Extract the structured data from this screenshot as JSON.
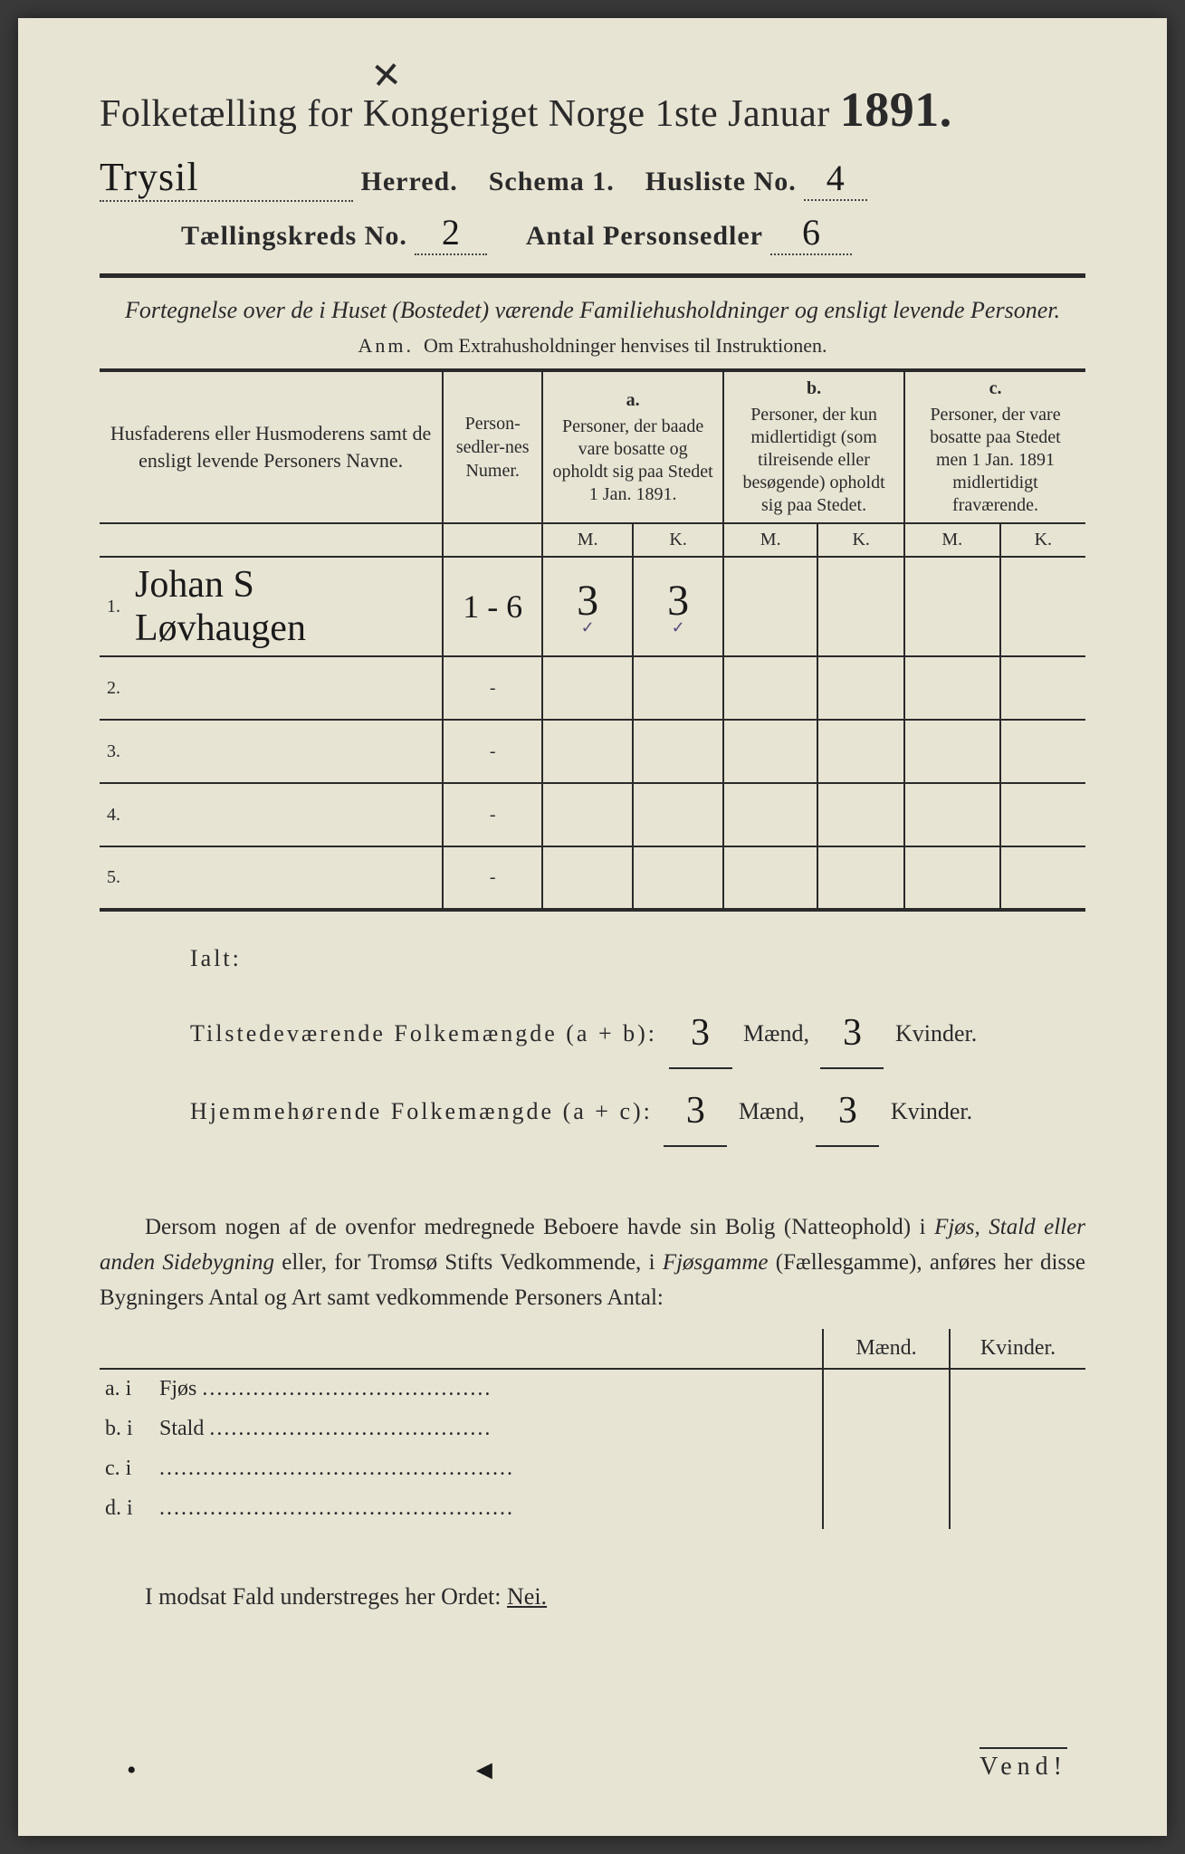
{
  "colors": {
    "paper": "#e8e4d4",
    "ink": "#2a2a2a",
    "handwriting": "#1a1a1a",
    "tick": "#5a4a7a",
    "background": "#3a3a3a"
  },
  "header": {
    "cross_mark": "✕",
    "title_prefix": "Folketælling for Kongeriget Norge 1ste Januar",
    "year": "1891.",
    "herred_value": "Trysil",
    "herred_label": "Herred.",
    "schema_label": "Schema 1.",
    "husliste_label": "Husliste No.",
    "husliste_value": "4",
    "kreds_label": "Tællingskreds No.",
    "kreds_value": "2",
    "personsedler_label": "Antal Personsedler",
    "personsedler_value": "6"
  },
  "intro": {
    "line": "Fortegnelse over de i Huset (Bostedet) værende Familiehusholdninger og ensligt levende Personer.",
    "anm_label": "Anm.",
    "anm_text": "Om Extrahusholdninger henvises til Instruktionen."
  },
  "table": {
    "col_name": "Husfaderens eller Husmoderens samt de ensligt levende Personers Navne.",
    "col_numer": "Person-sedler-nes Numer.",
    "col_a_label": "a.",
    "col_a_text": "Personer, der baade vare bosatte og opholdt sig paa Stedet 1 Jan. 1891.",
    "col_b_label": "b.",
    "col_b_text": "Personer, der kun midlertidigt (som tilreisende eller besøgende) opholdt sig paa Stedet.",
    "col_c_label": "c.",
    "col_c_text": "Personer, der vare bosatte paa Stedet men 1 Jan. 1891 midlertidigt fraværende.",
    "sub_m": "M.",
    "sub_k": "K.",
    "rows": [
      {
        "n": "1.",
        "name": "Johan S Løvhaugen",
        "numer": "1 - 6",
        "a_m": "3",
        "a_k": "3",
        "b_m": "",
        "b_k": "",
        "c_m": "",
        "c_k": ""
      },
      {
        "n": "2.",
        "name": "",
        "numer": "-",
        "a_m": "",
        "a_k": "",
        "b_m": "",
        "b_k": "",
        "c_m": "",
        "c_k": ""
      },
      {
        "n": "3.",
        "name": "",
        "numer": "-",
        "a_m": "",
        "a_k": "",
        "b_m": "",
        "b_k": "",
        "c_m": "",
        "c_k": ""
      },
      {
        "n": "4.",
        "name": "",
        "numer": "-",
        "a_m": "",
        "a_k": "",
        "b_m": "",
        "b_k": "",
        "c_m": "",
        "c_k": ""
      },
      {
        "n": "5.",
        "name": "",
        "numer": "-",
        "a_m": "",
        "a_k": "",
        "b_m": "",
        "b_k": "",
        "c_m": "",
        "c_k": ""
      }
    ]
  },
  "totals": {
    "ialt": "Ialt:",
    "line1_label": "Tilstedeværende Folkemængde (a + b):",
    "line2_label": "Hjemmehørende Folkemængde (a + c):",
    "maend": "Mænd,",
    "kvinder": "Kvinder.",
    "l1_m": "3",
    "l1_k": "3",
    "l2_m": "3",
    "l2_k": "3"
  },
  "para": {
    "text1": "Dersom nogen af de ovenfor medregnede Beboere havde sin Bolig (Natteophold) i ",
    "ital1": "Fjøs, Stald eller anden Sidebygning",
    "text2": " eller, for Tromsø Stifts Vedkommende, i ",
    "ital2": "Fjøsgamme",
    "text3": " (Fællesgamme), anføres her disse Bygningers Antal og Art samt vedkommende Personers Antal:"
  },
  "mk": {
    "maend": "Mænd.",
    "kvinder": "Kvinder.",
    "rows": [
      {
        "lbl": "a.  i",
        "txt": "Fjøs",
        "dots": "........................................"
      },
      {
        "lbl": "b.  i",
        "txt": "Stald",
        "dots": "......................................."
      },
      {
        "lbl": "c.  i",
        "txt": "",
        "dots": "................................................."
      },
      {
        "lbl": "d.  i",
        "txt": "",
        "dots": "................................................."
      }
    ]
  },
  "bottom": {
    "text": "I modsat Fald understreges her Ordet: ",
    "nei": "Nei."
  },
  "footer": "Vend!"
}
